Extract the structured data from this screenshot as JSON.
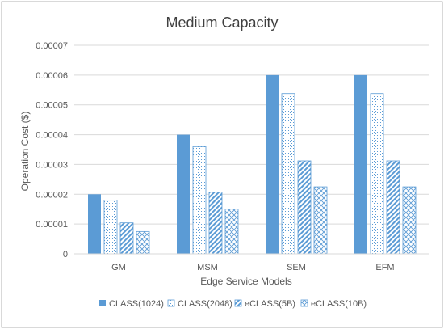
{
  "chart_data": {
    "type": "bar",
    "title": "Medium Capacity",
    "xlabel": "Edge Service Models",
    "ylabel": "Operation Cost ($)",
    "categories": [
      "GM",
      "MSM",
      "SEM",
      "EFM"
    ],
    "ylim": [
      0,
      7e-05
    ],
    "yticks": [
      "0",
      "0.00001",
      "0.00002",
      "0.00003",
      "0.00004",
      "0.00005",
      "0.00006",
      "0.00007"
    ],
    "grid": true,
    "legend_position": "bottom",
    "series": [
      {
        "name": "CLASS(1024)",
        "values": [
          2e-05,
          4e-05,
          6e-05,
          6e-05
        ],
        "pattern": "solid",
        "color": "#5b9bd5"
      },
      {
        "name": "CLASS(2048)",
        "values": [
          1.8e-05,
          3.6e-05,
          5.38e-05,
          5.38e-05
        ],
        "pattern": "dotted",
        "color": "#5b9bd5"
      },
      {
        "name": "eCLASS(5B)",
        "values": [
          1.04e-05,
          2.07e-05,
          3.12e-05,
          3.12e-05
        ],
        "pattern": "diagonal",
        "color": "#5b9bd5"
      },
      {
        "name": "eCLASS(10B)",
        "values": [
          7.5e-06,
          1.5e-05,
          2.25e-05,
          2.25e-05
        ],
        "pattern": "crosshatch",
        "color": "#5b9bd5"
      }
    ]
  }
}
